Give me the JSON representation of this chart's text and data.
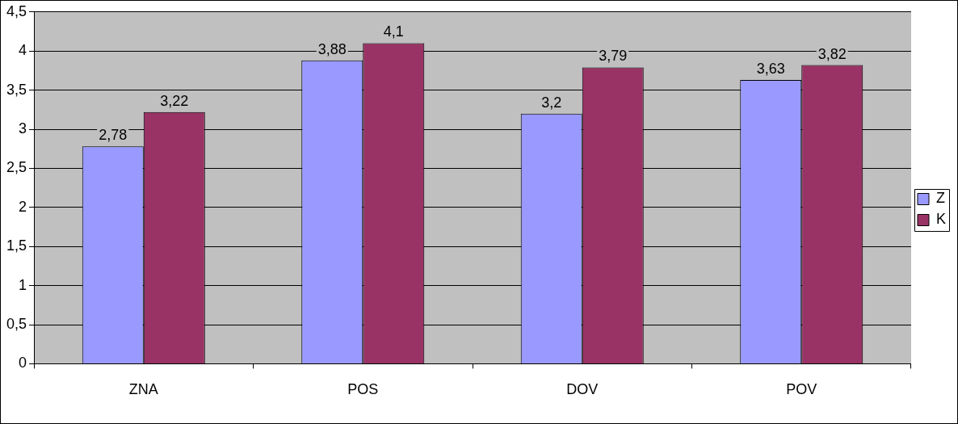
{
  "chart_data": {
    "type": "bar",
    "categories": [
      "ZNA",
      "POS",
      "DOV",
      "POV"
    ],
    "series": [
      {
        "name": "Z",
        "color": "#9999ff",
        "values": [
          2.78,
          3.88,
          3.2,
          3.63
        ],
        "value_labels": [
          "2,78",
          "3,88",
          "3,2",
          "3,63"
        ]
      },
      {
        "name": "K",
        "color": "#993366",
        "values": [
          3.22,
          4.1,
          3.79,
          3.82
        ],
        "value_labels": [
          "3,22",
          "4,1",
          "3,79",
          "3,82"
        ]
      }
    ],
    "ylim": [
      0,
      4.5
    ],
    "yticks": [
      0,
      {
        "value": 0.5,
        "label": "0,5"
      },
      1,
      {
        "value": 1.5,
        "label": "1,5"
      },
      2,
      {
        "value": 2.5,
        "label": "2,5"
      },
      3,
      {
        "value": 3.5,
        "label": "3,5"
      },
      4,
      {
        "value": 4.5,
        "label": "4,5"
      }
    ],
    "grid": "y",
    "legend": "right"
  }
}
